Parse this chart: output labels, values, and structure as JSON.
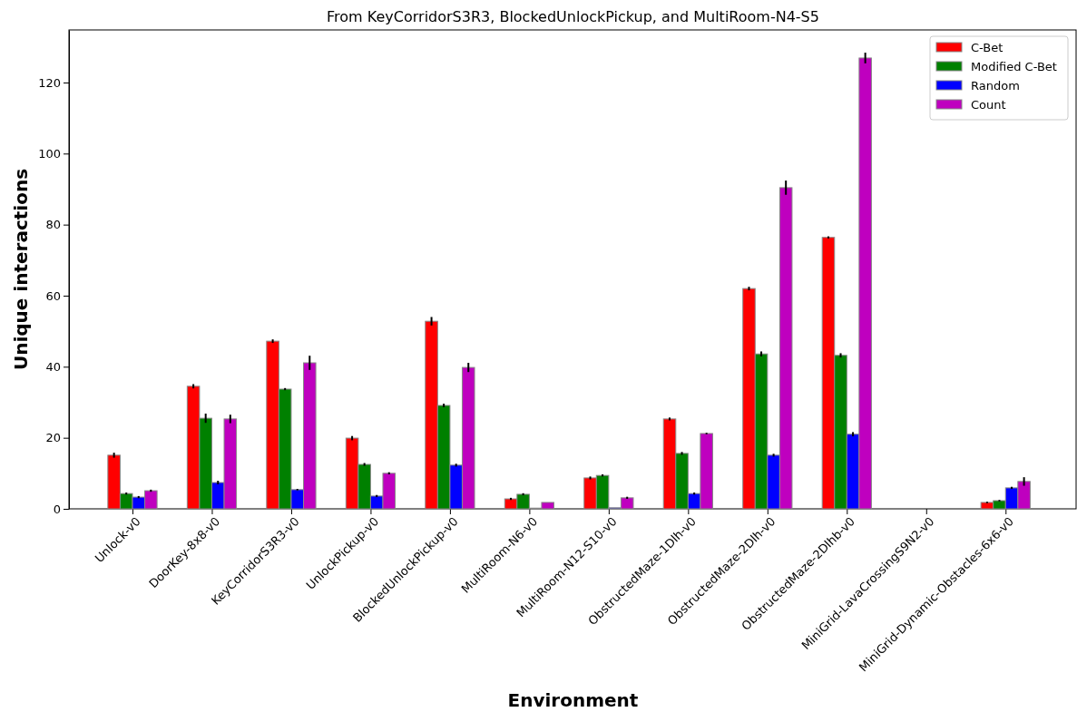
{
  "chart_data": {
    "type": "bar",
    "title": "From KeyCorridorS3R3, BlockedUnlockPickup, and MultiRoom-N4-S5",
    "xlabel": "Environment",
    "ylabel": "Unique interactions",
    "categories": [
      "Unlock-v0",
      "DoorKey-8x8-v0",
      "KeyCorridorS3R3-v0",
      "UnlockPickup-v0",
      "BlockedUnlockPickup-v0",
      "MultiRoom-N6-v0",
      "MultiRoom-N12-S10-v0",
      "ObstructedMaze-1Dlh-v0",
      "ObstructedMaze-2Dlh-v0",
      "ObstructedMaze-2Dlhb-v0",
      "MiniGrid-LavaCrossingS9N2-v0",
      "MiniGrid-Dynamic-Obstacles-6x6-v0"
    ],
    "series": [
      {
        "name": "C-Bet",
        "color": "#ff0000",
        "values": [
          15.1,
          34.5,
          47.2,
          19.9,
          52.8,
          2.8,
          8.7,
          25.3,
          62,
          76.4,
          0,
          1.8
        ],
        "errors": [
          0.7,
          0.6,
          0.5,
          0.6,
          1.2,
          0.3,
          0.4,
          0.4,
          0.5,
          0.3,
          0,
          0.2
        ]
      },
      {
        "name": "Modified C-Bet",
        "color": "#008000",
        "values": [
          4.3,
          25.5,
          33.7,
          12.5,
          29.1,
          4.1,
          9.4,
          15.6,
          43.6,
          43.2,
          0,
          2.3
        ],
        "errors": [
          0.3,
          1.3,
          0.3,
          0.4,
          0.5,
          0.3,
          0.3,
          0.4,
          0.7,
          0.6,
          0,
          0.2
        ]
      },
      {
        "name": "Random",
        "color": "#0000ff",
        "values": [
          3.3,
          7.4,
          5.4,
          3.6,
          12.3,
          0.2,
          0.3,
          4.3,
          15.1,
          21,
          0,
          5.9
        ],
        "errors": [
          0.3,
          0.5,
          0.2,
          0.3,
          0.4,
          null,
          null,
          0.3,
          0.4,
          0.6,
          0,
          0.3
        ]
      },
      {
        "name": "Count",
        "color": "#bf00bf",
        "values": [
          5.1,
          25.3,
          41.1,
          10,
          39.8,
          1.8,
          3.1,
          21.2,
          90.4,
          126.9,
          0,
          7.7
        ],
        "errors": [
          0.3,
          1.2,
          2,
          0.3,
          1.3,
          null,
          0.3,
          0.2,
          2,
          1.5,
          0,
          1.2
        ]
      }
    ],
    "ylim": [
      0,
      134.8
    ],
    "yticks": [
      0,
      20,
      40,
      60,
      80,
      100,
      120
    ],
    "legend": "top right"
  }
}
